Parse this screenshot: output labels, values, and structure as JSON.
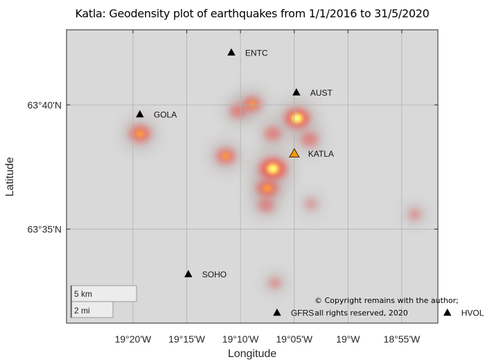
{
  "title": "Katla: Geodensity plot of earthquakes from 1/1/2016 to 31/5/2020",
  "chart_data": {
    "type": "heatmap",
    "title": "Katla: Geodensity plot of earthquakes from 1/1/2016 to 31/5/2020",
    "xlabel": "Longitude",
    "ylabel": "Latitude",
    "xlim": [
      -19.4363,
      -18.8607
    ],
    "ylim": [
      63.5202,
      63.7171
    ],
    "grid": true,
    "x_ticks": [
      {
        "value": -19.3333,
        "label": "19°20'W"
      },
      {
        "value": -19.25,
        "label": "19°15'W"
      },
      {
        "value": -19.1667,
        "label": "19°10'W"
      },
      {
        "value": -19.0833,
        "label": "19°05'W"
      },
      {
        "value": -19.0,
        "label": "19°W"
      },
      {
        "value": -18.9167,
        "label": "18°55'W"
      }
    ],
    "y_ticks": [
      {
        "value": 63.6667,
        "label": "63°40'N"
      },
      {
        "value": 63.5833,
        "label": "63°35'N"
      }
    ],
    "stations": [
      {
        "name": "ENTC",
        "lon": -19.1808,
        "lat": 63.702,
        "color": "#000000"
      },
      {
        "name": "AUST",
        "lon": -19.08,
        "lat": 63.6752,
        "color": "#000000"
      },
      {
        "name": "GOLA",
        "lon": -19.3226,
        "lat": 63.6605,
        "color": "#000000"
      },
      {
        "name": "KATLA",
        "lon": -19.0832,
        "lat": 63.6342,
        "color": "#ff9900"
      },
      {
        "name": "SOHO",
        "lon": -19.2475,
        "lat": 63.5532,
        "color": "#000000"
      },
      {
        "name": "GFRS",
        "lon": -19.11,
        "lat": 63.5273,
        "color": "#000000"
      },
      {
        "name": "HVOL",
        "lon": -18.846,
        "lat": 63.5273,
        "color": "#000000"
      }
    ],
    "density_hotspots": [
      {
        "lon": -19.3226,
        "lat": 63.6474,
        "intensity": 0.7
      },
      {
        "lon": -19.1486,
        "lat": 63.6672,
        "intensity": 0.55
      },
      {
        "lon": -19.1701,
        "lat": 63.6625,
        "intensity": 0.45
      },
      {
        "lon": -19.0788,
        "lat": 63.6577,
        "intensity": 0.9
      },
      {
        "lon": -19.1164,
        "lat": 63.6474,
        "intensity": 0.45
      },
      {
        "lon": -19.0595,
        "lat": 63.6436,
        "intensity": 0.45
      },
      {
        "lon": -19.1894,
        "lat": 63.6323,
        "intensity": 0.6
      },
      {
        "lon": -19.1164,
        "lat": 63.6238,
        "intensity": 1.0
      },
      {
        "lon": -19.125,
        "lat": 63.6107,
        "intensity": 0.7
      },
      {
        "lon": -19.1271,
        "lat": 63.5994,
        "intensity": 0.4
      },
      {
        "lon": -19.1132,
        "lat": 63.5471,
        "intensity": 0.2
      },
      {
        "lon": -18.8963,
        "lat": 63.5932,
        "intensity": 0.2
      },
      {
        "lon": -19.0573,
        "lat": 63.6003,
        "intensity": 0.15
      }
    ],
    "scale_bar": {
      "km_label": "5 km",
      "mi_label": "2 mi"
    },
    "colors": {
      "background": "#d9d9d9",
      "grid": "#b0b0b0",
      "low": "#e8605a",
      "mid": "#ff9a3c",
      "high": "#ffff80"
    }
  },
  "copyright": {
    "line1": "© Copyright remains with the author;",
    "line2": "all rights reserved, 2020"
  }
}
